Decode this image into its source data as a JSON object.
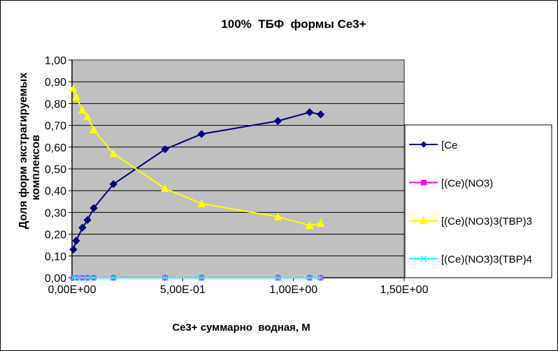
{
  "chart_data": {
    "type": "line",
    "title": "100%  ТБФ  формы Ce3+",
    "xlabel": "Ce3+ суммарно  водная, М",
    "ylabel_lines": [
      "Доля форм экстрагируемых",
      "комплексов"
    ],
    "xlim": [
      0,
      1.5
    ],
    "ylim": [
      0,
      1.0
    ],
    "x_ticks": [
      0,
      0.5,
      1.0,
      1.5
    ],
    "x_tick_labels": [
      "0,00E+00",
      "5,00E-01",
      "1,00E+00",
      "1,50E+00"
    ],
    "y_ticks": [
      0,
      0.1,
      0.2,
      0.3,
      0.4,
      0.5,
      0.6,
      0.7,
      0.8,
      0.9,
      1.0
    ],
    "y_tick_labels": [
      "0,00",
      "0,10",
      "0,20",
      "0,30",
      "0,40",
      "0,50",
      "0,60",
      "0,70",
      "0,80",
      "0,90",
      "1,00"
    ],
    "grid": "horizontal",
    "legend_position": "right",
    "plot_background": "#c0c0c0",
    "x": [
      0.006,
      0.019,
      0.047,
      0.07,
      0.098,
      0.187,
      0.42,
      0.585,
      0.93,
      1.073,
      1.123
    ],
    "series": [
      {
        "name": "[Ce",
        "color": "#000080",
        "marker": "diamond",
        "values": [
          0.13,
          0.17,
          0.23,
          0.265,
          0.32,
          0.43,
          0.59,
          0.66,
          0.72,
          0.76,
          0.75
        ]
      },
      {
        "name": "[(Ce)(NO3)",
        "color": "#ff00ff",
        "marker": "square",
        "values": [
          0,
          0,
          0,
          0,
          0,
          0,
          0,
          0,
          0,
          0,
          0
        ]
      },
      {
        "name": "[(Ce)(NO3)3(TBP)3",
        "color": "#ffff00",
        "marker": "triangle",
        "values": [
          0.87,
          0.83,
          0.77,
          0.74,
          0.68,
          0.57,
          0.41,
          0.34,
          0.28,
          0.24,
          0.25
        ]
      },
      {
        "name": "[(Ce)(NO3)3(TBP)4",
        "color": "#00ffff",
        "marker": "x",
        "values": [
          0,
          0,
          0,
          0,
          0,
          0,
          0,
          0,
          0,
          0,
          0
        ]
      }
    ]
  }
}
